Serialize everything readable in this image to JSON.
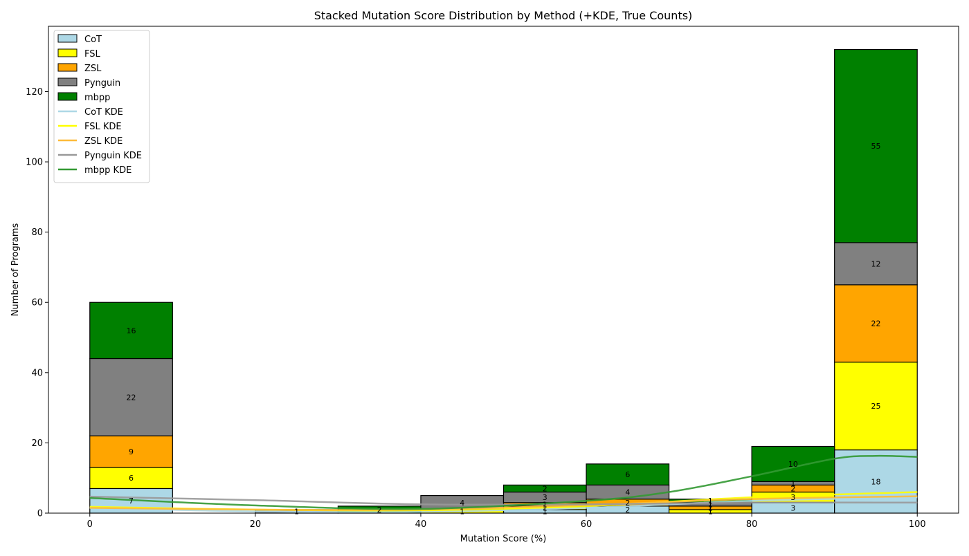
{
  "chart_data": {
    "type": "bar",
    "stacked": true,
    "title": "Stacked Mutation Score Distribution by Method (+KDE, True Counts)",
    "xlabel": "Mutation Score (%)",
    "ylabel": "Number of Programs",
    "xlim": [
      -5,
      105
    ],
    "ylim": [
      0,
      138.6
    ],
    "xticks": [
      0,
      20,
      40,
      60,
      80,
      100
    ],
    "yticks": [
      0,
      20,
      40,
      60,
      80,
      100,
      120
    ],
    "legend_position": "upper-left",
    "grid": false,
    "bin_edges": [
      0,
      10,
      20,
      30,
      40,
      50,
      60,
      70,
      80,
      90,
      100
    ],
    "series": [
      {
        "name": "CoT",
        "color": "#add8e6",
        "values": [
          7,
          0,
          0,
          0,
          0,
          1,
          2,
          0,
          3,
          18
        ]
      },
      {
        "name": "FSL",
        "color": "#ffff00",
        "values": [
          6,
          0,
          0,
          0,
          1,
          1,
          0,
          1,
          3,
          25
        ]
      },
      {
        "name": "ZSL",
        "color": "#ffa500",
        "values": [
          9,
          0,
          0,
          0,
          0,
          1,
          2,
          1,
          2,
          22
        ]
      },
      {
        "name": "Pynguin",
        "color": "#808080",
        "values": [
          22,
          0,
          1,
          0,
          4,
          3,
          4,
          1,
          1,
          12
        ]
      },
      {
        "name": "mbpp",
        "color": "#008000",
        "values": [
          16,
          0,
          0,
          2,
          0,
          2,
          6,
          1,
          10,
          55
        ]
      }
    ],
    "bar_value_labels": [
      {
        "x": 5,
        "y": 3.5,
        "text": "7"
      },
      {
        "x": 5,
        "y": 10,
        "text": "6"
      },
      {
        "x": 5,
        "y": 17.5,
        "text": "9"
      },
      {
        "x": 5,
        "y": 33,
        "text": "22"
      },
      {
        "x": 5,
        "y": 52,
        "text": "16"
      },
      {
        "x": 25,
        "y": 0.5,
        "text": "1"
      },
      {
        "x": 35,
        "y": 1,
        "text": "2"
      },
      {
        "x": 45,
        "y": 0.5,
        "text": "1"
      },
      {
        "x": 45,
        "y": 3,
        "text": "4"
      },
      {
        "x": 55,
        "y": 0.5,
        "text": "1"
      },
      {
        "x": 55,
        "y": 1.5,
        "text": "1"
      },
      {
        "x": 55,
        "y": 2.5,
        "text": "1"
      },
      {
        "x": 55,
        "y": 4.5,
        "text": "3"
      },
      {
        "x": 55,
        "y": 7,
        "text": "2"
      },
      {
        "x": 65,
        "y": 1,
        "text": "2"
      },
      {
        "x": 65,
        "y": 3,
        "text": "2"
      },
      {
        "x": 65,
        "y": 6,
        "text": "4"
      },
      {
        "x": 65,
        "y": 11,
        "text": "6"
      },
      {
        "x": 75,
        "y": 0.5,
        "text": "1"
      },
      {
        "x": 75,
        "y": 1.5,
        "text": "1"
      },
      {
        "x": 75,
        "y": 2.5,
        "text": "1"
      },
      {
        "x": 75,
        "y": 3.5,
        "text": "1"
      },
      {
        "x": 85,
        "y": 1.5,
        "text": "3"
      },
      {
        "x": 85,
        "y": 4.5,
        "text": "3"
      },
      {
        "x": 85,
        "y": 7,
        "text": "2"
      },
      {
        "x": 85,
        "y": 8.5,
        "text": "1"
      },
      {
        "x": 85,
        "y": 14,
        "text": "10"
      },
      {
        "x": 95,
        "y": 9,
        "text": "18"
      },
      {
        "x": 95,
        "y": 30.5,
        "text": "25"
      },
      {
        "x": 95,
        "y": 54,
        "text": "22"
      },
      {
        "x": 95,
        "y": 71,
        "text": "12"
      },
      {
        "x": 95,
        "y": 104.5,
        "text": "55"
      }
    ],
    "kde_lines": [
      {
        "name": "CoT KDE",
        "color": "#add8e6",
        "x": [
          0,
          20,
          40,
          60,
          80,
          100
        ],
        "y": [
          1.5,
          0.5,
          0.4,
          1.5,
          3.5,
          4.5
        ]
      },
      {
        "name": "FSL KDE",
        "color": "#ffff00",
        "x": [
          0,
          20,
          40,
          60,
          80,
          100
        ],
        "y": [
          1.8,
          1.0,
          0.8,
          2.0,
          4.5,
          6.0
        ]
      },
      {
        "name": "ZSL KDE",
        "color": "#fdbb3a",
        "x": [
          0,
          20,
          40,
          60,
          80,
          100
        ],
        "y": [
          1.5,
          1.0,
          1.0,
          2.3,
          4.0,
          4.8
        ]
      },
      {
        "name": "Pynguin KDE",
        "color": "#999999",
        "x": [
          0,
          20,
          40,
          60,
          80,
          100
        ],
        "y": [
          4.7,
          3.7,
          2.5,
          2.5,
          3.0,
          3.0
        ]
      },
      {
        "name": "mbpp KDE",
        "color": "#339933",
        "x": [
          0,
          20,
          40,
          60,
          70,
          80,
          90,
          95,
          100
        ],
        "y": [
          4.3,
          2.2,
          1.2,
          3.5,
          6.0,
          10.5,
          15.5,
          16.3,
          16.0
        ]
      }
    ]
  }
}
